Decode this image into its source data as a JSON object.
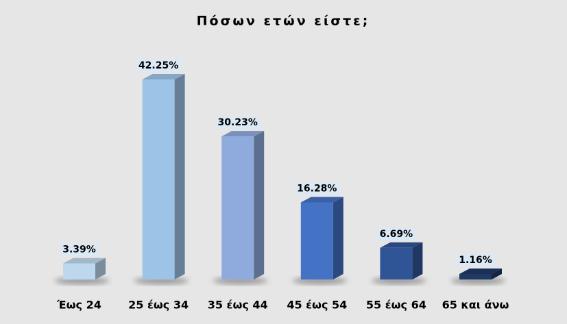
{
  "chart_data": {
    "type": "bar3d",
    "title": "Πόσων ετών είστε;",
    "categories": [
      "Έως 24",
      "25 έως 34",
      "35 έως 44",
      "45 έως 54",
      "55 έως 64",
      "65 και άνω"
    ],
    "values": [
      3.39,
      42.25,
      30.23,
      16.28,
      6.69,
      1.16
    ],
    "value_labels": [
      "3.39%",
      "42.25%",
      "30.23%",
      "16.28%",
      "6.69%",
      "1.16%"
    ],
    "colors": [
      "#bdd7ee",
      "#9dc3e6",
      "#8faadc",
      "#4472c4",
      "#2f5597",
      "#1f3864"
    ]
  }
}
